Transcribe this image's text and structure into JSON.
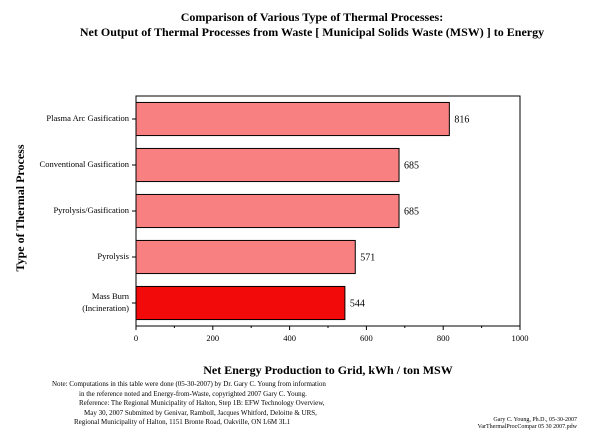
{
  "chart_data": {
    "type": "bar",
    "orientation": "horizontal",
    "title": "Comparison of Various Type of Thermal Processes:",
    "subtitle": "Net Output of Thermal Processes from Waste [ Municipal Solids Waste (MSW) ] to Energy",
    "xlabel": "Net Energy Production to Grid, kWh / ton MSW",
    "ylabel": "Type of Thermal Process",
    "xlim": [
      0,
      1000
    ],
    "xticks": [
      "0",
      "200",
      "400",
      "600",
      "800",
      "1000"
    ],
    "categories": [
      [
        "Plasma Arc Gasification"
      ],
      [
        "Conventional Gasification"
      ],
      [
        "Pyrolysis/Gasification"
      ],
      [
        "Pyrolysis"
      ],
      [
        "Mass Burn",
        "(Incineration)"
      ]
    ],
    "values": [
      816,
      685,
      685,
      571,
      544
    ],
    "data_labels": [
      "816",
      "685",
      "685",
      "571",
      "544"
    ],
    "bar_colors": [
      "#f98080",
      "#f98080",
      "#f98080",
      "#f98080",
      "#f20a0a"
    ],
    "grid": false,
    "legend": "none"
  },
  "footnote": {
    "lines": [
      "Note: Computations in this table were done (05-30-2007) by Dr. Gary C. Young from information",
      "in the reference noted and Energy-from-Waste, copyrighted 2007 Gary C. Young.",
      "Reference: The Regional Municipality of Halton, Step 1B: EFW Technology Overview,",
      "May 30, 2007 Submitted by Genivar, Ramboll, Jacques Whitford, Deloitte & URS,",
      "Regional Municipality of Halton, 1151 Bronte Road, Oakville, ON  L6M 3L1"
    ]
  },
  "credit": {
    "lines": [
      "Gary C. Young, Ph.D., 05-30-2007",
      "VarThermalProcCompar 05 30 2007.pdw"
    ]
  },
  "colors": {
    "bar_default": "#f98080",
    "bar_highlight": "#f20a0a",
    "bar_border": "#000000"
  }
}
